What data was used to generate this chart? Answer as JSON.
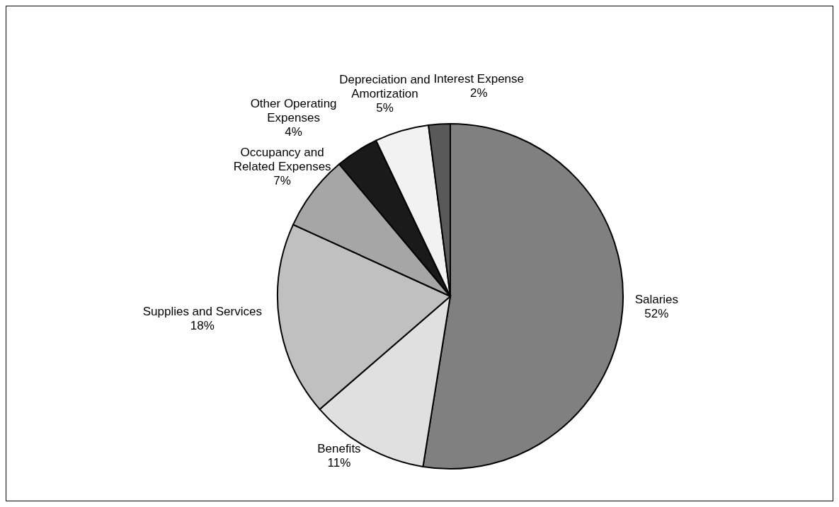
{
  "chart_data": {
    "type": "pie",
    "categories": [
      "Salaries",
      "Benefits",
      "Supplies and Services",
      "Occupancy and Related Expenses",
      "Other Operating Expenses",
      "Depreciation and Amortization",
      "Interest Expense"
    ],
    "values": [
      52,
      11,
      18,
      7,
      4,
      5,
      2
    ],
    "colors": [
      "#808080",
      "#e0e0e0",
      "#c0c0c0",
      "#a6a6a6",
      "#1a1a1a",
      "#f2f2f2",
      "#595959"
    ],
    "value_labels": [
      "52%",
      "11%",
      "18%",
      "7%",
      "4%",
      "5%",
      "2%"
    ],
    "legend": false
  }
}
